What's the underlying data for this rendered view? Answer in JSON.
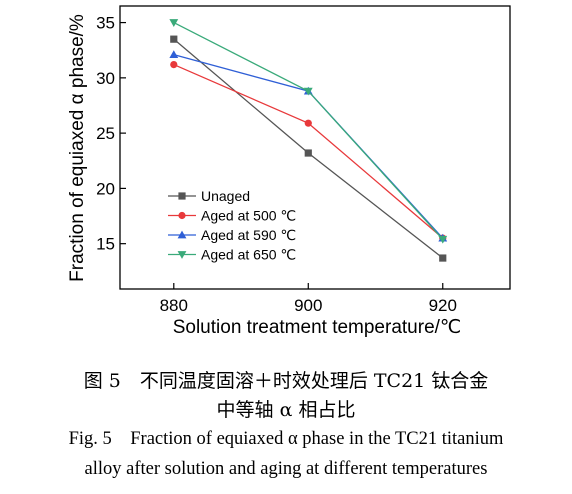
{
  "chart_data": {
    "type": "line",
    "categories": [
      "880",
      "900",
      "920"
    ],
    "x": [
      880,
      900,
      920
    ],
    "xlabel": "Solution treatment temperature/℃",
    "ylabel": "Fraction of equiaxed α phase/%",
    "xlim": [
      872,
      930
    ],
    "ylim": [
      10.9,
      36.5
    ],
    "yticks": [
      15,
      20,
      25,
      30,
      35
    ],
    "grid": false,
    "legend_position": "bottom-left",
    "series": [
      {
        "name": "Unaged",
        "values": [
          33.5,
          23.2,
          13.7
        ],
        "color": "#555555",
        "marker": "square"
      },
      {
        "name": "Aged at 500 ℃",
        "values": [
          31.2,
          25.9,
          15.5
        ],
        "color": "#e8393b",
        "marker": "circle"
      },
      {
        "name": "Aged at 590 ℃",
        "values": [
          32.1,
          28.8,
          15.5
        ],
        "color": "#2f5fd6",
        "marker": "triangle-up"
      },
      {
        "name": "Aged at 650 ℃",
        "values": [
          35.0,
          28.8,
          15.4
        ],
        "color": "#3aaa7a",
        "marker": "triangle-down"
      }
    ]
  },
  "caption": {
    "cn_line1": "图 5　不同温度固溶＋时效处理后 TC21 钛合金",
    "cn_line2": "中等轴 α 相占比",
    "en_line1": "Fig. 5 Fraction of equiaxed α phase in the TC21 titanium",
    "en_line2": "alloy after solution and aging at different temperatures"
  }
}
